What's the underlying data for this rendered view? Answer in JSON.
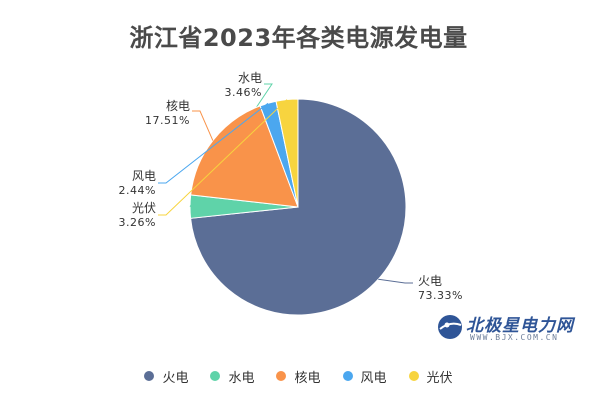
{
  "chart_data": {
    "type": "pie",
    "title": "浙江省2023年各类电源发电量",
    "slices": [
      {
        "name": "火电",
        "percent_label": "73.33%",
        "value": 73.33,
        "color": "#5b6e96"
      },
      {
        "name": "水电",
        "percent_label": "3.46%",
        "value": 3.46,
        "color": "#5fd3a9"
      },
      {
        "name": "核电",
        "percent_label": "17.51%",
        "value": 17.51,
        "color": "#f9934a"
      },
      {
        "name": "风电",
        "percent_label": "2.44%",
        "value": 2.44,
        "color": "#4ba7ef"
      },
      {
        "name": "光伏",
        "percent_label": "3.26%",
        "value": 3.26,
        "color": "#f7d43f"
      }
    ],
    "legend": [
      "火电",
      "水电",
      "核电",
      "风电",
      "光伏"
    ],
    "legend_position": "bottom"
  },
  "watermark": {
    "name": "北极星电力网",
    "url": "WWW.BJX.COM.CN"
  }
}
